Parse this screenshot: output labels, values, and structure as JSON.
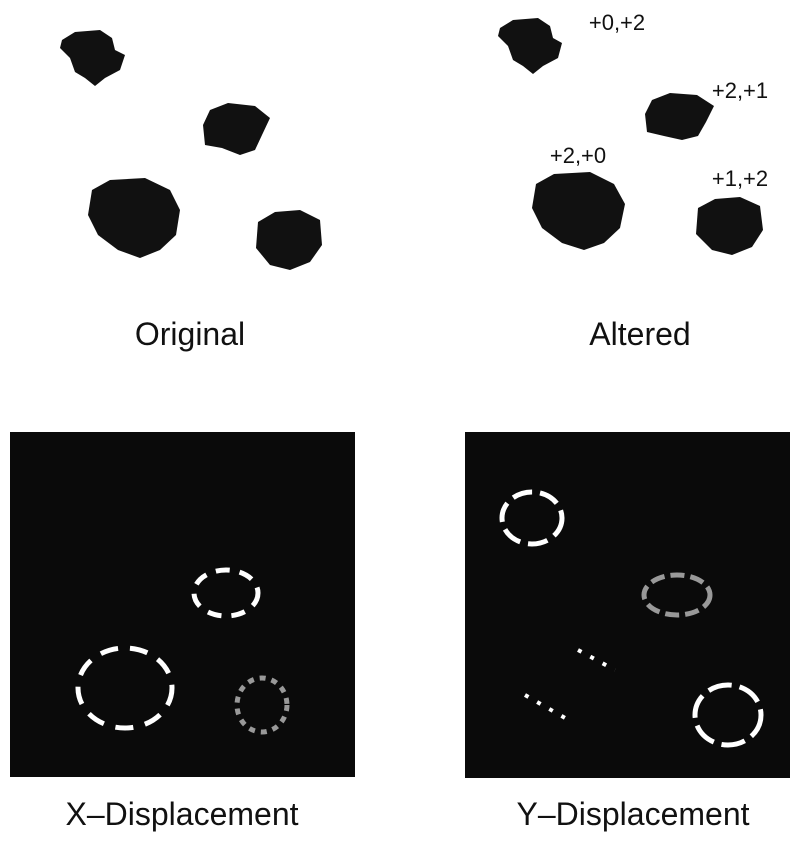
{
  "panels": [
    {
      "caption": "Original"
    },
    {
      "caption": "Altered",
      "labels": [
        "+0,+2",
        "+2,+1",
        "+2,+0",
        "+1,+2"
      ]
    },
    {
      "caption": "X–Displacement"
    },
    {
      "caption": "Y–Displacement"
    }
  ]
}
